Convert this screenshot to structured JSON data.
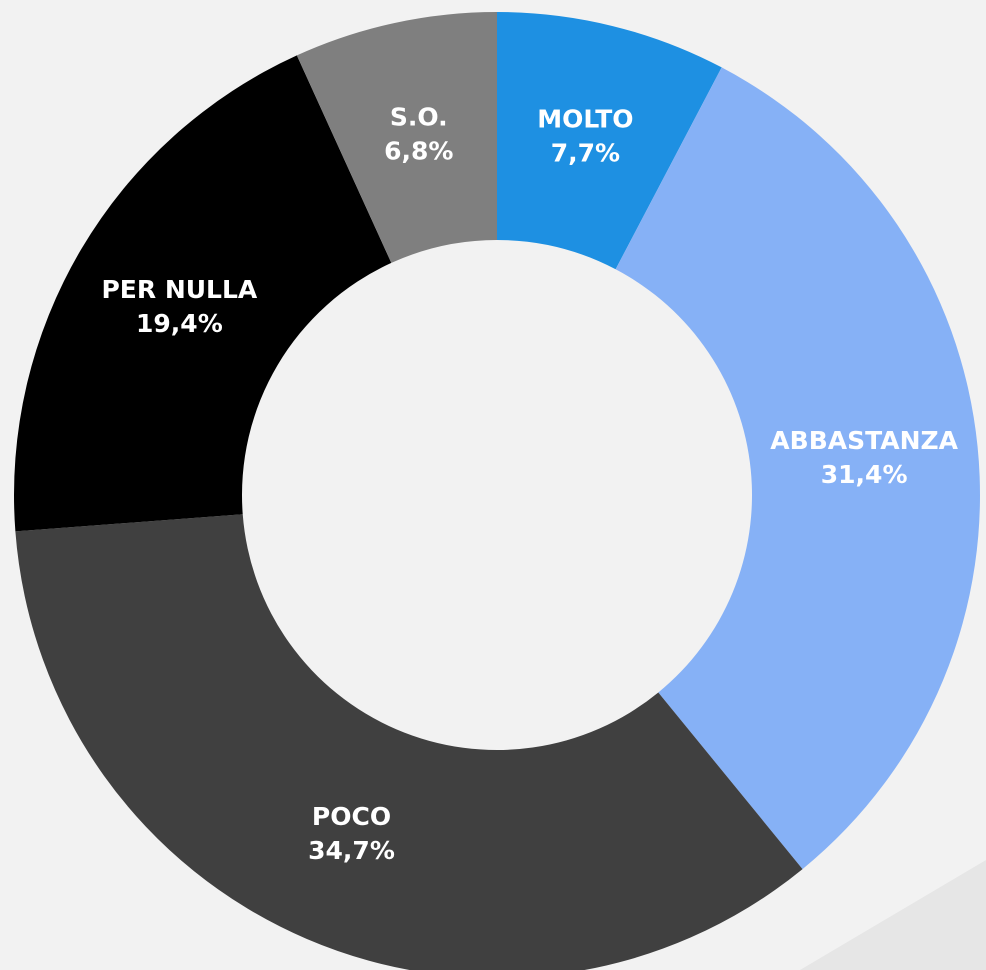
{
  "chart_data": {
    "type": "donut",
    "categories": [
      "MOLTO",
      "ABBASTANZA",
      "POCO",
      "PER NULLA",
      "S.O."
    ],
    "values": [
      7.7,
      31.4,
      34.7,
      19.4,
      6.8
    ],
    "value_labels": [
      "7,7%",
      "31,4%",
      "34,7%",
      "19,4%",
      "6,8%"
    ],
    "colors": [
      "#1e90e2",
      "#86b1f6",
      "#404040",
      "#000000",
      "#7f7f7f"
    ]
  }
}
